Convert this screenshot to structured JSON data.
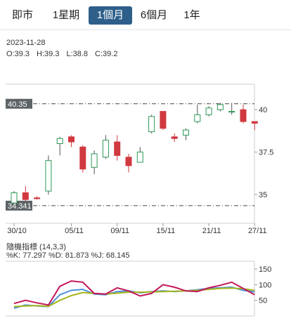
{
  "tabs": [
    {
      "label": "即市",
      "active": false
    },
    {
      "label": "1星期",
      "active": false
    },
    {
      "label": "1個月",
      "active": true
    },
    {
      "label": "6個月",
      "active": false
    },
    {
      "label": "1年",
      "active": false
    }
  ],
  "info": {
    "date": "2023-11-28",
    "open": "O:39.3",
    "high": "H:39.3",
    "low": "L:38.8",
    "close": "C:39.2"
  },
  "indicator": {
    "title": "隨機指標 (14,3,3)",
    "k": "%K: 77.297",
    "d": "%D: 81.873",
    "j": "%J: 68.145"
  },
  "colors": {
    "up": "#2e9a57",
    "down": "#d0393f",
    "k_line": "#4a90d9",
    "d_line": "#a6b51c",
    "j_line": "#c2185b",
    "active_tab": "#2e5f8a"
  },
  "chart_data": [
    {
      "type": "candlestick",
      "title": "",
      "ylim": [
        33.3,
        41.5
      ],
      "yticks": [
        "35",
        "37.5",
        "40"
      ],
      "y_tick_values": [
        35,
        37.5,
        40
      ],
      "xtick_labels": [
        "30/10",
        "05/11",
        "09/11",
        "15/11",
        "21/11",
        "27/11"
      ],
      "xtick_index": [
        0,
        5,
        9,
        13,
        17,
        21
      ],
      "ref_lines": [
        {
          "value": 40.35,
          "label": "40.35"
        },
        {
          "value": 34.341,
          "label": "34.341"
        }
      ],
      "candles": [
        {
          "o": 34.5,
          "h": 35.2,
          "l": 34.5,
          "c": 35.1
        },
        {
          "o": 35.1,
          "h": 35.5,
          "l": 34.6,
          "c": 34.7
        },
        {
          "o": 34.8,
          "h": 34.9,
          "l": 34.7,
          "c": 34.75
        },
        {
          "o": 35.2,
          "h": 37.3,
          "l": 35.0,
          "c": 37.0
        },
        {
          "o": 38.0,
          "h": 38.4,
          "l": 37.3,
          "c": 38.3
        },
        {
          "o": 38.4,
          "h": 38.5,
          "l": 37.8,
          "c": 38.1
        },
        {
          "o": 37.8,
          "h": 37.9,
          "l": 36.3,
          "c": 36.5
        },
        {
          "o": 36.6,
          "h": 37.6,
          "l": 36.2,
          "c": 37.4
        },
        {
          "o": 37.2,
          "h": 38.5,
          "l": 37.1,
          "c": 38.2
        },
        {
          "o": 38.1,
          "h": 38.5,
          "l": 37.0,
          "c": 37.3
        },
        {
          "o": 37.2,
          "h": 37.4,
          "l": 36.3,
          "c": 36.7
        },
        {
          "o": 36.9,
          "h": 37.8,
          "l": 36.9,
          "c": 37.5
        },
        {
          "o": 38.7,
          "h": 39.7,
          "l": 38.6,
          "c": 39.6
        },
        {
          "o": 39.9,
          "h": 39.9,
          "l": 38.8,
          "c": 38.9
        },
        {
          "o": 38.4,
          "h": 38.6,
          "l": 38.1,
          "c": 38.3
        },
        {
          "o": 38.5,
          "h": 38.9,
          "l": 38.2,
          "c": 38.8
        },
        {
          "o": 39.3,
          "h": 40.3,
          "l": 39.2,
          "c": 39.7
        },
        {
          "o": 39.7,
          "h": 40.2,
          "l": 39.6,
          "c": 40.1
        },
        {
          "o": 40.0,
          "h": 40.4,
          "l": 39.9,
          "c": 40.3
        },
        {
          "o": 39.9,
          "h": 40.4,
          "l": 39.7,
          "c": 39.9
        },
        {
          "o": 40.0,
          "h": 40.3,
          "l": 39.2,
          "c": 39.3
        },
        {
          "o": 39.3,
          "h": 39.3,
          "l": 38.8,
          "c": 39.2
        }
      ]
    },
    {
      "type": "line",
      "title": "隨機指標 (14,3,3)",
      "ylim": [
        0,
        175
      ],
      "yticks": [
        "50",
        "100",
        "150"
      ],
      "y_tick_values": [
        50,
        100,
        150
      ],
      "series": [
        {
          "name": "%K",
          "values": [
            25,
            35,
            32,
            30,
            68,
            82,
            85,
            70,
            68,
            78,
            80,
            74,
            78,
            80,
            78,
            80,
            84,
            88,
            90,
            92,
            82,
            77
          ]
        },
        {
          "name": "%D",
          "values": [
            30,
            32,
            33,
            31,
            50,
            65,
            75,
            72,
            70,
            73,
            76,
            76,
            77,
            78,
            79,
            80,
            82,
            85,
            88,
            89,
            87,
            82
          ]
        },
        {
          "name": "%J",
          "values": [
            40,
            50,
            42,
            35,
            95,
            112,
            108,
            72,
            70,
            90,
            80,
            64,
            72,
            100,
            92,
            80,
            78,
            90,
            98,
            108,
            88,
            68
          ]
        }
      ]
    }
  ]
}
